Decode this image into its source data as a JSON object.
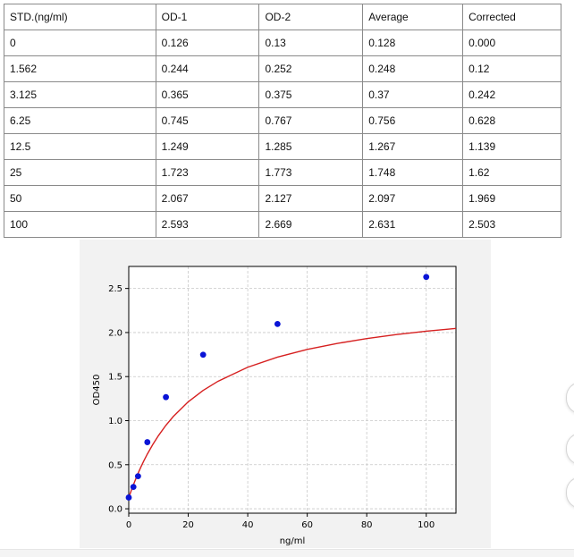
{
  "table": {
    "headers": [
      "STD.(ng/ml)",
      "OD-1",
      "OD-2",
      "Average",
      "Corrected"
    ],
    "rows": [
      [
        "0",
        "0.126",
        "0.13",
        "0.128",
        "0.000"
      ],
      [
        "1.562",
        "0.244",
        "0.252",
        "0.248",
        "0.12"
      ],
      [
        "3.125",
        "0.365",
        "0.375",
        "0.37",
        "0.242"
      ],
      [
        "6.25",
        "0.745",
        "0.767",
        "0.756",
        "0.628"
      ],
      [
        "12.5",
        "1.249",
        "1.285",
        "1.267",
        "1.139"
      ],
      [
        "25",
        "1.723",
        "1.773",
        "1.748",
        "1.62"
      ],
      [
        "50",
        "2.067",
        "2.127",
        "2.097",
        "1.969"
      ],
      [
        "100",
        "2.593",
        "2.669",
        "2.631",
        "2.503"
      ]
    ]
  },
  "chart_data": {
    "type": "scatter",
    "xlabel": "ng/ml",
    "ylabel": "OD450",
    "xlim": [
      0,
      110
    ],
    "ylim": [
      -0.05,
      2.75
    ],
    "xticks": [
      "0",
      "20",
      "40",
      "60",
      "80",
      "100"
    ],
    "yticks": [
      "0.0",
      "0.5",
      "1.0",
      "1.5",
      "2.0",
      "2.5"
    ],
    "grid": true,
    "points": {
      "x": [
        0,
        1.562,
        3.125,
        6.25,
        12.5,
        25,
        50,
        100
      ],
      "y": [
        0.128,
        0.248,
        0.37,
        0.756,
        1.267,
        1.748,
        2.097,
        2.631
      ]
    },
    "fit_curve": {
      "x": [
        0,
        0.5,
        1,
        1.562,
        2,
        3,
        4,
        5,
        6.25,
        8,
        10,
        12.5,
        15,
        20,
        25,
        30,
        40,
        50,
        60,
        70,
        80,
        90,
        100,
        110
      ],
      "y": [
        0.128,
        0.174,
        0.221,
        0.271,
        0.309,
        0.392,
        0.468,
        0.539,
        0.621,
        0.725,
        0.831,
        0.948,
        1.048,
        1.214,
        1.343,
        1.447,
        1.606,
        1.721,
        1.808,
        1.876,
        1.931,
        1.977,
        2.015,
        2.047
      ]
    },
    "colors": {
      "points": "#0a14d6",
      "curve": "#d62020",
      "plot_bg": "#ffffff",
      "figure_bg": "#f2f2f2",
      "grid": "#c8c8c8"
    }
  }
}
